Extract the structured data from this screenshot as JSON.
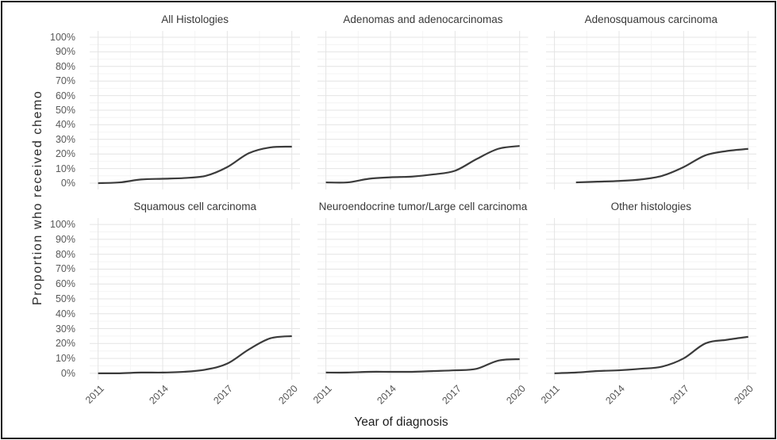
{
  "figure": {
    "y_axis_title": "Proportion who received chemo",
    "x_axis_title": "Year of diagnosis",
    "colors": {
      "background": "#ffffff",
      "border": "#1c1c1c",
      "line": "#3b3b3b",
      "grid_major": "#e4e4e4",
      "grid_minor": "#f4f4f4",
      "tick_text": "#595959",
      "panel_title_text": "#383838",
      "axis_title_text": "#1c1c1c"
    },
    "axes": {
      "xlim": [
        2011,
        2020
      ],
      "ylim": [
        0,
        100
      ],
      "x_ticks": [
        {
          "value": 2011,
          "label": "2011"
        },
        {
          "value": 2014,
          "label": "2014"
        },
        {
          "value": 2017,
          "label": "2017"
        },
        {
          "value": 2020,
          "label": "2020"
        }
      ],
      "x_minor": [
        2012.5,
        2015.5,
        2018.5
      ],
      "y_ticks": [
        {
          "value": 0,
          "label": "0%"
        },
        {
          "value": 10,
          "label": "10%"
        },
        {
          "value": 20,
          "label": "20%"
        },
        {
          "value": 30,
          "label": "30%"
        },
        {
          "value": 40,
          "label": "40%"
        },
        {
          "value": 50,
          "label": "50%"
        },
        {
          "value": 60,
          "label": "60%"
        },
        {
          "value": 70,
          "label": "70%"
        },
        {
          "value": 80,
          "label": "80%"
        },
        {
          "value": 90,
          "label": "90%"
        },
        {
          "value": 100,
          "label": "100%"
        }
      ],
      "y_minor": [
        5,
        15,
        25,
        35,
        45,
        55,
        65,
        75,
        85,
        95
      ],
      "grid": true,
      "legend": "none"
    }
  },
  "chart_data": [
    {
      "type": "line",
      "title": "All Histologies",
      "xlabel": "Year of diagnosis",
      "ylabel": "Proportion who received chemo",
      "ylim": [
        0,
        100
      ],
      "x": [
        2011,
        2012,
        2013,
        2014,
        2015,
        2016,
        2017,
        2018,
        2019,
        2020
      ],
      "values": [
        0,
        0.5,
        2.5,
        3,
        3.5,
        5,
        11,
        20.5,
        24.5,
        25
      ]
    },
    {
      "type": "line",
      "title": "Adenomas and adenocarcinomas",
      "xlabel": "Year of diagnosis",
      "ylabel": "Proportion who received chemo",
      "ylim": [
        0,
        100
      ],
      "x": [
        2011,
        2012,
        2013,
        2014,
        2015,
        2016,
        2017,
        2018,
        2019,
        2020
      ],
      "values": [
        0.5,
        0.5,
        3,
        4,
        4.5,
        6,
        8.5,
        16.5,
        23.5,
        25.5
      ]
    },
    {
      "type": "line",
      "title": "Adenosquamous carcinoma",
      "xlabel": "Year of diagnosis",
      "ylabel": "Proportion who received chemo",
      "ylim": [
        0,
        100
      ],
      "x": [
        2012,
        2013,
        2014,
        2015,
        2016,
        2017,
        2018,
        2019,
        2020
      ],
      "values": [
        0.5,
        1,
        1.5,
        2.5,
        5,
        11,
        19,
        22,
        23.5
      ]
    },
    {
      "type": "line",
      "title": "Squamous cell carcinoma",
      "xlabel": "Year of diagnosis",
      "ylabel": "Proportion who received chemo",
      "ylim": [
        0,
        100
      ],
      "x": [
        2011,
        2012,
        2013,
        2014,
        2015,
        2016,
        2017,
        2018,
        2019,
        2020
      ],
      "values": [
        0,
        0,
        0.5,
        0.5,
        1,
        2.5,
        6.5,
        16,
        23.5,
        25
      ]
    },
    {
      "type": "line",
      "title": "Neuroendocrine tumor/Large cell carcinoma",
      "xlabel": "Year of diagnosis",
      "ylabel": "Proportion who received chemo",
      "ylim": [
        0,
        100
      ],
      "x": [
        2011,
        2012,
        2013,
        2014,
        2015,
        2016,
        2017,
        2018,
        2019,
        2020
      ],
      "values": [
        0.5,
        0.5,
        1,
        1,
        1,
        1.5,
        2,
        3,
        8.5,
        9.5
      ]
    },
    {
      "type": "line",
      "title": "Other histologies",
      "xlabel": "Year of diagnosis",
      "ylabel": "Proportion who received chemo",
      "ylim": [
        0,
        100
      ],
      "x": [
        2011,
        2012,
        2013,
        2014,
        2015,
        2016,
        2017,
        2018,
        2019,
        2020
      ],
      "values": [
        0,
        0.5,
        1.5,
        2,
        3,
        4.5,
        10,
        20,
        22.5,
        24.5
      ]
    }
  ]
}
